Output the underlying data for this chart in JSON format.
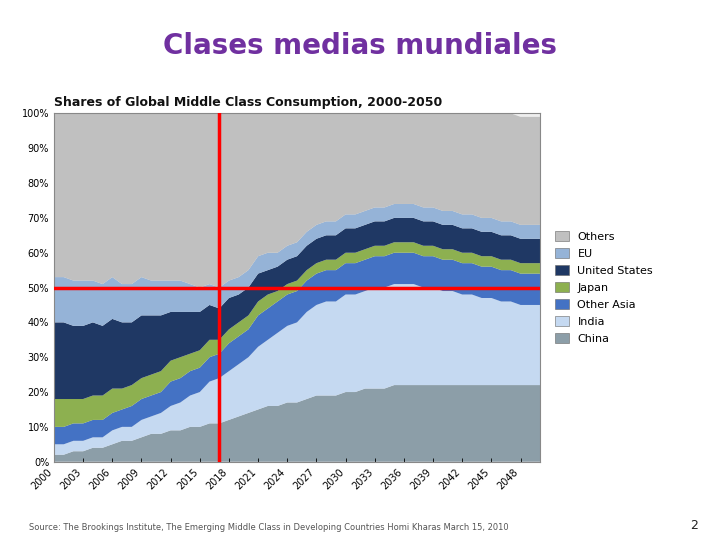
{
  "title": "Clases medias mundiales",
  "chart_title": "Shares of Global Middle Class Consumption, 2000-2050",
  "source_text": "Source: The Brookings Institute, The Emerging Middle Class in Developing Countries Homi Kharas March 15, 2010",
  "page_number": "2",
  "title_color": "#7030a0",
  "background_color": "#ffffff",
  "years": [
    2000,
    2001,
    2002,
    2003,
    2004,
    2005,
    2006,
    2007,
    2008,
    2009,
    2010,
    2011,
    2012,
    2013,
    2014,
    2015,
    2016,
    2017,
    2018,
    2019,
    2020,
    2021,
    2022,
    2023,
    2024,
    2025,
    2026,
    2027,
    2028,
    2029,
    2030,
    2031,
    2032,
    2033,
    2034,
    2035,
    2036,
    2037,
    2038,
    2039,
    2040,
    2041,
    2042,
    2043,
    2044,
    2045,
    2046,
    2047,
    2048,
    2049,
    2050
  ],
  "series": {
    "China": {
      "color": "#8c9ea8",
      "values": [
        2,
        2,
        3,
        3,
        4,
        4,
        5,
        6,
        6,
        7,
        8,
        8,
        9,
        9,
        10,
        10,
        11,
        11,
        12,
        13,
        14,
        15,
        16,
        16,
        17,
        17,
        18,
        19,
        19,
        19,
        20,
        20,
        21,
        21,
        21,
        22,
        22,
        22,
        22,
        22,
        22,
        22,
        22,
        22,
        22,
        22,
        22,
        22,
        22,
        22,
        22
      ]
    },
    "India": {
      "color": "#c5d9f1",
      "values": [
        3,
        3,
        3,
        3,
        3,
        3,
        4,
        4,
        4,
        5,
        5,
        6,
        7,
        8,
        9,
        10,
        12,
        13,
        14,
        15,
        16,
        18,
        19,
        21,
        22,
        23,
        25,
        26,
        27,
        27,
        28,
        28,
        28,
        29,
        29,
        29,
        29,
        29,
        28,
        28,
        27,
        27,
        26,
        26,
        25,
        25,
        24,
        24,
        23,
        23,
        23
      ]
    },
    "Other Asia": {
      "color": "#4472c4",
      "values": [
        5,
        5,
        5,
        5,
        5,
        5,
        5,
        5,
        6,
        6,
        6,
        6,
        7,
        7,
        7,
        7,
        7,
        7,
        8,
        8,
        8,
        9,
        9,
        9,
        9,
        9,
        9,
        9,
        9,
        9,
        9,
        9,
        9,
        9,
        9,
        9,
        9,
        9,
        9,
        9,
        9,
        9,
        9,
        9,
        9,
        9,
        9,
        9,
        9,
        9,
        9
      ]
    },
    "Japan": {
      "color": "#8db050",
      "values": [
        8,
        8,
        7,
        7,
        7,
        7,
        7,
        6,
        6,
        6,
        6,
        6,
        6,
        6,
        5,
        5,
        5,
        4,
        4,
        4,
        4,
        4,
        4,
        3,
        3,
        3,
        3,
        3,
        3,
        3,
        3,
        3,
        3,
        3,
        3,
        3,
        3,
        3,
        3,
        3,
        3,
        3,
        3,
        3,
        3,
        3,
        3,
        3,
        3,
        3,
        3
      ]
    },
    "United States": {
      "color": "#1f3864",
      "values": [
        22,
        22,
        21,
        21,
        21,
        20,
        20,
        19,
        18,
        18,
        17,
        16,
        14,
        13,
        12,
        11,
        10,
        9,
        9,
        8,
        8,
        8,
        7,
        7,
        7,
        7,
        7,
        7,
        7,
        7,
        7,
        7,
        7,
        7,
        7,
        7,
        7,
        7,
        7,
        7,
        7,
        7,
        7,
        7,
        7,
        7,
        7,
        7,
        7,
        7,
        7
      ]
    },
    "EU": {
      "color": "#95b3d7",
      "values": [
        13,
        13,
        13,
        13,
        12,
        12,
        12,
        11,
        11,
        11,
        10,
        10,
        9,
        9,
        8,
        7,
        6,
        6,
        5,
        5,
        5,
        5,
        5,
        4,
        4,
        4,
        4,
        4,
        4,
        4,
        4,
        4,
        4,
        4,
        4,
        4,
        4,
        4,
        4,
        4,
        4,
        4,
        4,
        4,
        4,
        4,
        4,
        4,
        4,
        4,
        4
      ]
    },
    "Others": {
      "color": "#c0c0c0",
      "values": [
        47,
        47,
        48,
        48,
        48,
        49,
        48,
        49,
        49,
        47,
        48,
        48,
        48,
        48,
        49,
        50,
        49,
        50,
        48,
        47,
        45,
        41,
        40,
        40,
        38,
        37,
        34,
        32,
        31,
        31,
        29,
        29,
        28,
        27,
        27,
        26,
        26,
        26,
        27,
        27,
        28,
        28,
        29,
        29,
        30,
        30,
        31,
        31,
        31,
        31,
        31
      ]
    }
  },
  "vline_x": 2017,
  "hline_y": 50,
  "vline_color": "#ff0000",
  "hline_color": "#ff0000",
  "crosshair_lw": 2.5,
  "ylim": [
    0,
    100
  ],
  "ytick_vals": [
    0,
    10,
    20,
    30,
    40,
    50,
    60,
    70,
    80,
    90,
    100
  ],
  "ytick_labels": [
    "0%",
    "10%",
    "20%",
    "30%",
    "40%",
    "50%",
    "60%",
    "70%",
    "80%",
    "90%",
    "100%"
  ],
  "xtick_years": [
    2000,
    2003,
    2006,
    2009,
    2012,
    2015,
    2018,
    2021,
    2024,
    2027,
    2030,
    2033,
    2036,
    2039,
    2042,
    2045,
    2048
  ],
  "chart_bg_color": "#eeeeee",
  "chart_border_color": "#888888",
  "title_fontsize": 20,
  "chart_title_fontsize": 9,
  "tick_fontsize": 7,
  "legend_fontsize": 8,
  "source_fontsize": 6
}
